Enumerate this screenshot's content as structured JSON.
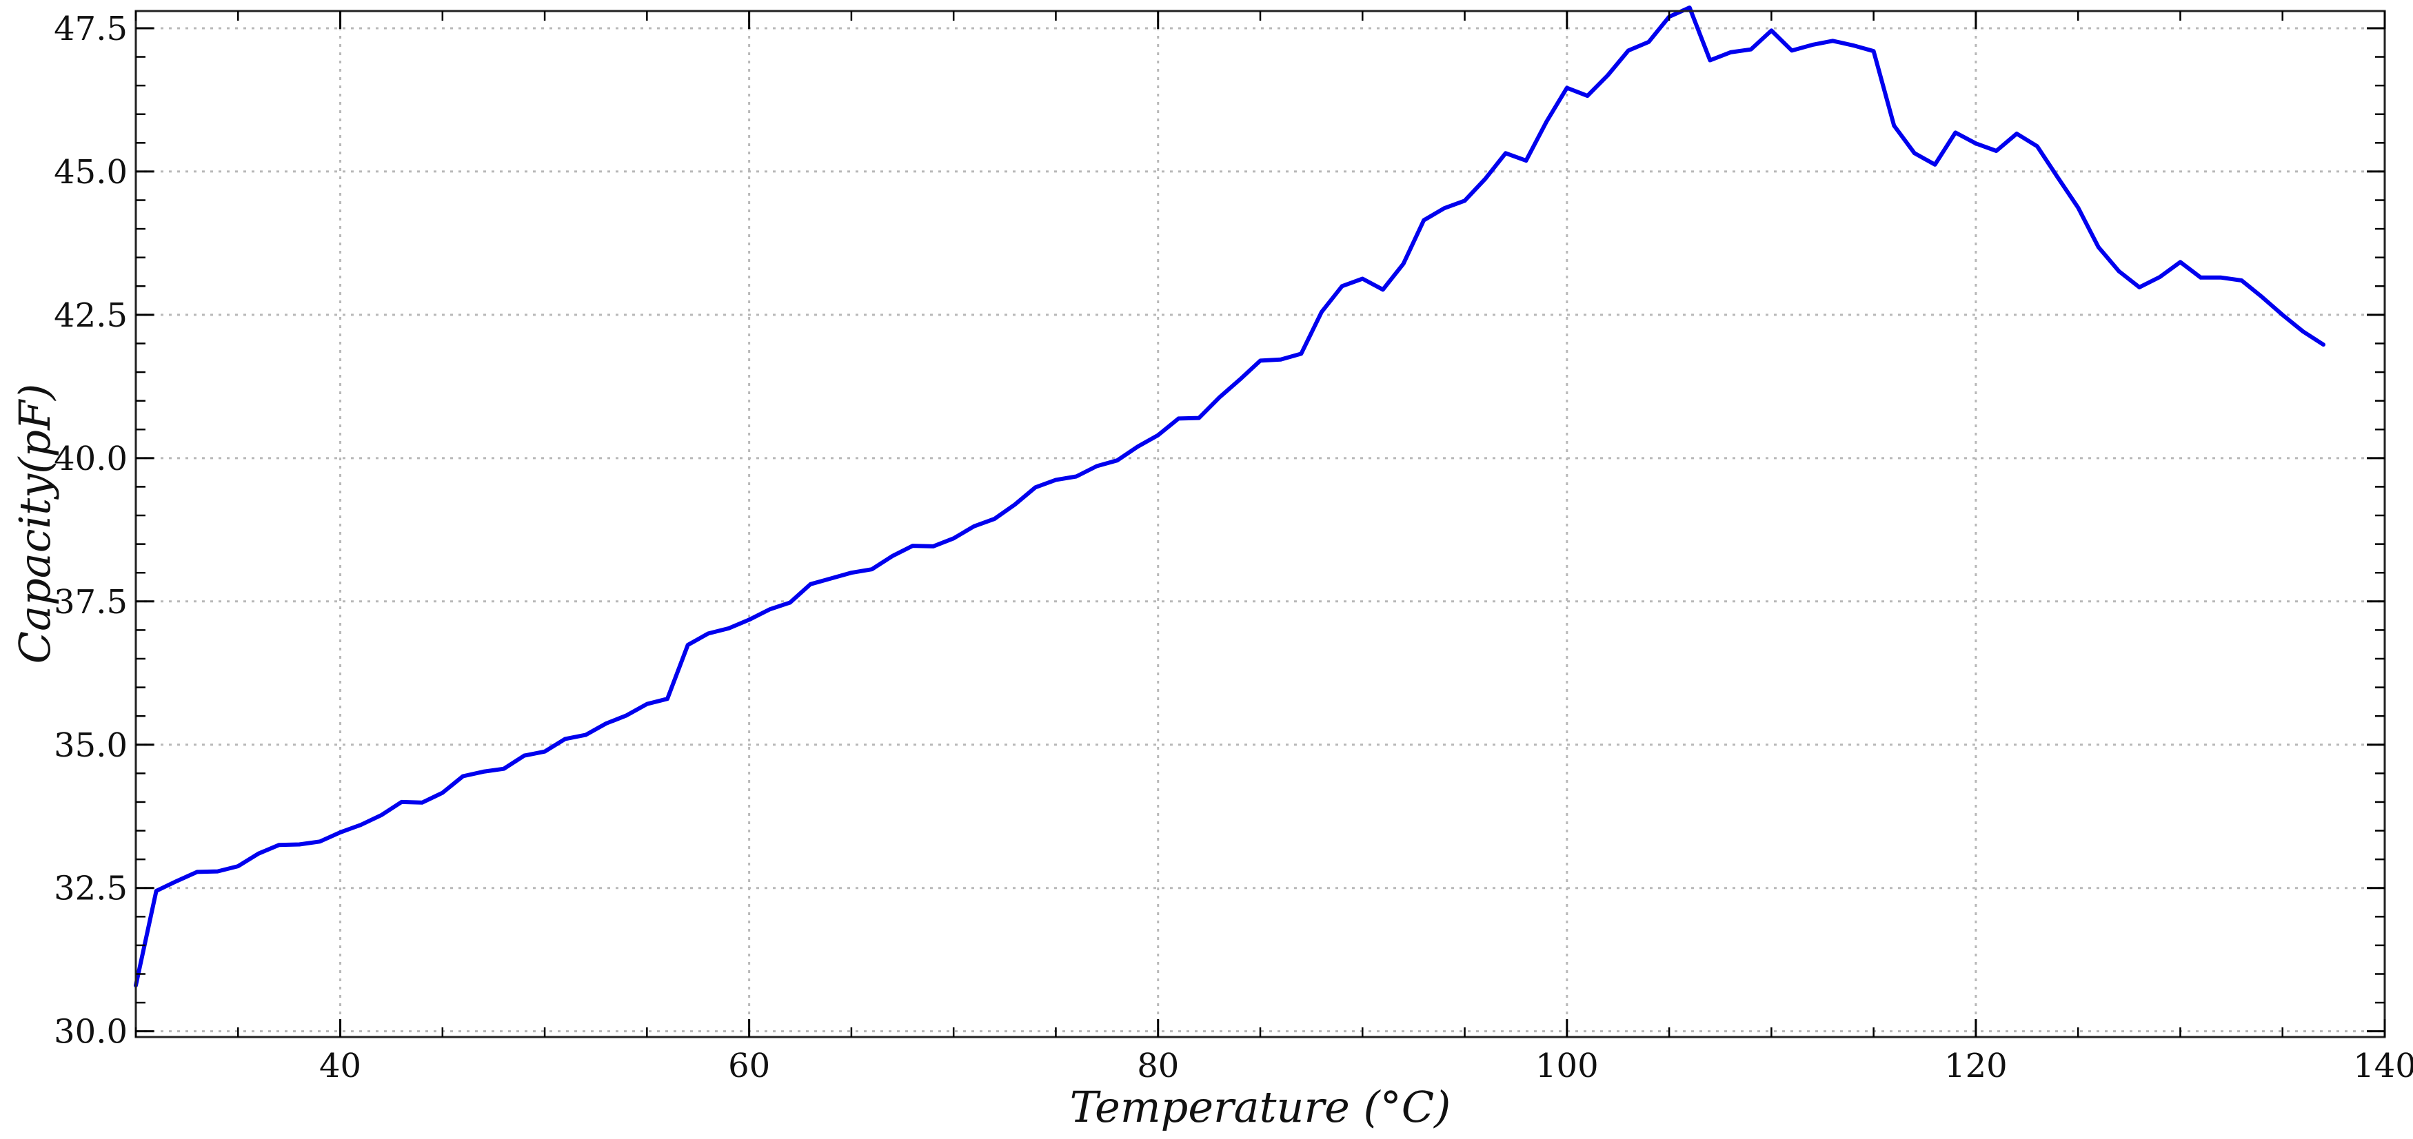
{
  "chart_data": {
    "type": "line",
    "title": "",
    "xlabel": "Temperature (°C)",
    "ylabel": "Capacity(pF)",
    "xlim": [
      30,
      140
    ],
    "ylim": [
      29.9,
      47.8
    ],
    "x_ticks": [
      40,
      60,
      80,
      100,
      120,
      140
    ],
    "x_tick_labels": [
      "40",
      "60",
      "80",
      "100",
      "120",
      "140"
    ],
    "x_minor_step": 5,
    "y_ticks": [
      30.0,
      32.5,
      35.0,
      37.5,
      40.0,
      42.5,
      45.0,
      47.5
    ],
    "y_tick_labels": [
      "30.0",
      "32.5",
      "35.0",
      "37.5",
      "40.0",
      "42.5",
      "45.0",
      "47.5"
    ],
    "y_minor_step": 0.5,
    "grid": true,
    "line_color": "#0000ee",
    "series": [
      {
        "x": [
          30,
          31,
          32,
          33,
          34,
          35,
          36,
          37,
          38,
          39,
          40,
          41,
          42,
          43,
          44,
          45,
          46,
          47,
          48,
          49,
          50,
          51,
          52,
          53,
          54,
          55,
          56,
          57,
          58,
          59,
          60,
          61,
          62,
          63,
          64,
          65,
          66,
          67,
          68,
          69,
          70,
          71,
          72,
          73,
          74,
          75,
          76,
          77,
          78,
          79,
          80,
          81,
          82,
          83,
          84,
          85,
          86,
          87,
          88,
          89,
          90,
          91,
          92,
          93,
          94,
          95,
          96,
          97,
          98,
          99,
          100,
          101,
          102,
          103,
          104,
          105,
          106,
          107,
          108,
          109,
          110,
          111,
          112,
          113,
          114,
          115,
          116,
          117,
          118,
          119,
          120,
          121,
          122,
          123,
          124,
          125,
          126,
          127,
          128,
          129,
          130,
          131,
          132,
          133,
          134,
          135,
          136,
          137
        ],
        "values": [
          30.8,
          32.45,
          32.62,
          32.78,
          32.79,
          32.88,
          33.1,
          33.25,
          33.26,
          33.31,
          33.47,
          33.6,
          33.77,
          34.0,
          33.99,
          34.16,
          34.45,
          34.53,
          34.58,
          34.81,
          34.88,
          35.1,
          35.17,
          35.37,
          35.51,
          35.71,
          35.8,
          36.74,
          36.94,
          37.03,
          37.18,
          37.36,
          37.48,
          37.8,
          37.9,
          38.0,
          38.06,
          38.29,
          38.47,
          38.46,
          38.6,
          38.81,
          38.94,
          39.19,
          39.49,
          39.62,
          39.68,
          39.86,
          39.96,
          40.2,
          40.4,
          40.69,
          40.7,
          41.06,
          41.37,
          41.7,
          41.72,
          41.82,
          42.55,
          43.0,
          43.13,
          42.94,
          43.39,
          44.15,
          44.36,
          44.49,
          44.87,
          45.32,
          45.19,
          45.87,
          46.46,
          46.32,
          46.68,
          47.11,
          47.26,
          47.7,
          47.86,
          46.94,
          47.08,
          47.13,
          47.46,
          47.11,
          47.21,
          47.28,
          47.2,
          47.1,
          45.8,
          45.32,
          45.12,
          45.68,
          45.49,
          45.36,
          45.66,
          45.44,
          44.9,
          44.37,
          43.68,
          43.26,
          42.98,
          43.16,
          43.42,
          43.15,
          43.15,
          43.1,
          42.81,
          42.5,
          42.21,
          41.98
        ]
      }
    ]
  }
}
